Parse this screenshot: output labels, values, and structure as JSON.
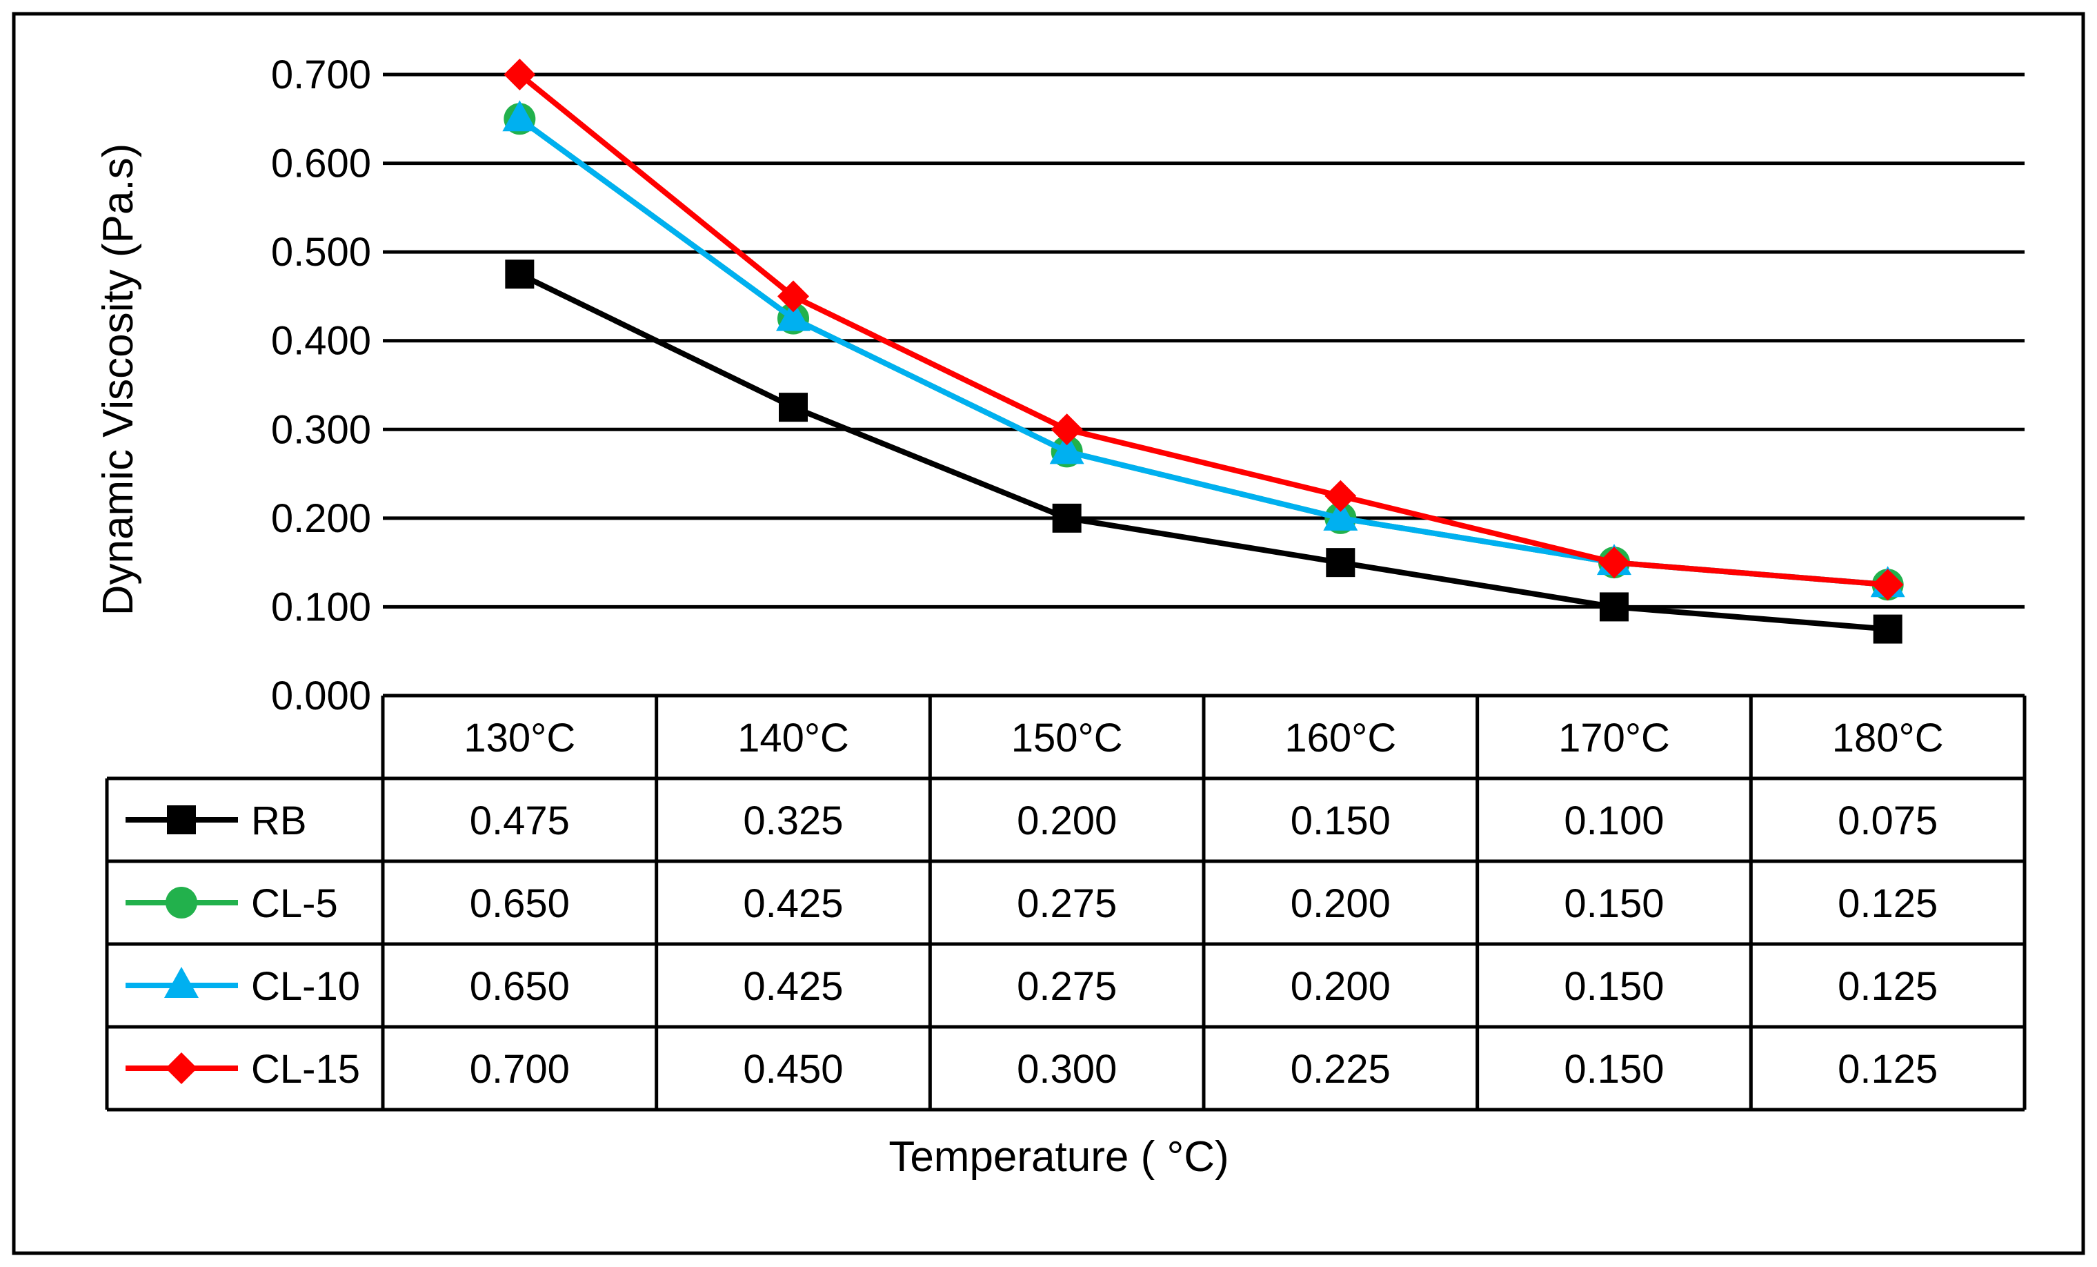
{
  "chart_data": {
    "type": "line",
    "title": "",
    "xlabel": "Temperature ( °C)",
    "ylabel": "Dynamic Viscosity (Pa.s)",
    "ylim": [
      0,
      0.7
    ],
    "y_ticks": [
      "0.000",
      "0.100",
      "0.200",
      "0.300",
      "0.400",
      "0.500",
      "0.600",
      "0.700"
    ],
    "categories": [
      "130°C",
      "140°C",
      "150°C",
      "160°C",
      "170°C",
      "180°C"
    ],
    "grid": true,
    "legend": "data-table",
    "series": [
      {
        "name": "RB",
        "color": "#000000",
        "marker": "square",
        "values": [
          0.475,
          0.325,
          0.2,
          0.15,
          0.1,
          0.075
        ],
        "labels": [
          "0.475",
          "0.325",
          "0.200",
          "0.150",
          "0.100",
          "0.075"
        ]
      },
      {
        "name": "CL-5",
        "color": "#22b14c",
        "marker": "circle",
        "values": [
          0.65,
          0.425,
          0.275,
          0.2,
          0.15,
          0.125
        ],
        "labels": [
          "0.650",
          "0.425",
          "0.275",
          "0.200",
          "0.150",
          "0.125"
        ]
      },
      {
        "name": "CL-10",
        "color": "#00b0f0",
        "marker": "triangle",
        "values": [
          0.65,
          0.425,
          0.275,
          0.2,
          0.15,
          0.125
        ],
        "labels": [
          "0.650",
          "0.425",
          "0.275",
          "0.200",
          "0.150",
          "0.125"
        ]
      },
      {
        "name": "CL-15",
        "color": "#ff0000",
        "marker": "diamond",
        "values": [
          0.7,
          0.45,
          0.3,
          0.225,
          0.15,
          0.125
        ],
        "labels": [
          "0.700",
          "0.450",
          "0.300",
          "0.225",
          "0.150",
          "0.125"
        ]
      }
    ]
  }
}
